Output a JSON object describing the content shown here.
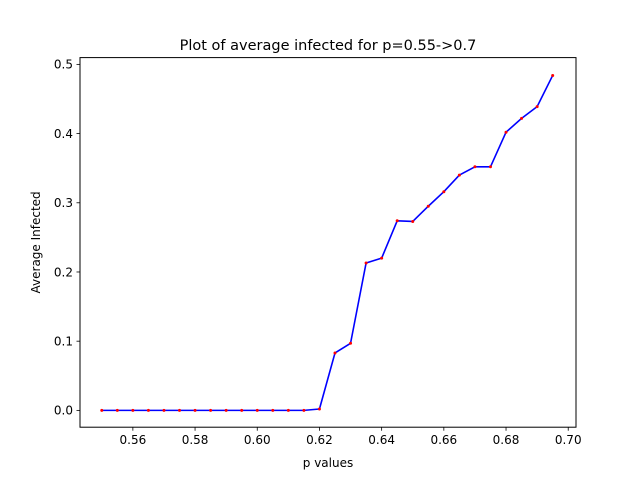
{
  "chart_data": {
    "type": "line",
    "title": "Plot of average infected for p=0.55->0.7",
    "xlabel": "p values",
    "ylabel": "Average Infected",
    "xlim": [
      0.543,
      0.7025
    ],
    "ylim": [
      -0.0243,
      0.5098
    ],
    "xticks": [
      0.56,
      0.58,
      0.6,
      0.62,
      0.64,
      0.66,
      0.68,
      0.7
    ],
    "xtick_labels": [
      "0.56",
      "0.58",
      "0.60",
      "0.62",
      "0.64",
      "0.66",
      "0.68",
      "0.70"
    ],
    "yticks": [
      0.0,
      0.1,
      0.2,
      0.3,
      0.4,
      0.5
    ],
    "ytick_labels": [
      "0.0",
      "0.1",
      "0.2",
      "0.3",
      "0.4",
      "0.5"
    ],
    "grid": false,
    "line_color": "#0000ff",
    "marker_color": "#ff0000",
    "series": [
      {
        "x": [
          0.55,
          0.555,
          0.56,
          0.565,
          0.57,
          0.575,
          0.58,
          0.585,
          0.59,
          0.595,
          0.6,
          0.605,
          0.61,
          0.615,
          0.62,
          0.625,
          0.63,
          0.635,
          0.64,
          0.645,
          0.65,
          0.655,
          0.66,
          0.665,
          0.67,
          0.675,
          0.68,
          0.685,
          0.69,
          0.695
        ],
        "y": [
          0.0,
          0.0,
          0.0,
          0.0,
          0.0,
          0.0,
          0.0,
          0.0,
          0.0,
          0.0,
          0.0,
          0.0,
          0.0,
          0.0,
          0.002,
          0.083,
          0.097,
          0.213,
          0.22,
          0.274,
          0.273,
          0.295,
          0.316,
          0.34,
          0.352,
          0.352,
          0.402,
          0.422,
          0.439,
          0.484
        ]
      }
    ]
  }
}
